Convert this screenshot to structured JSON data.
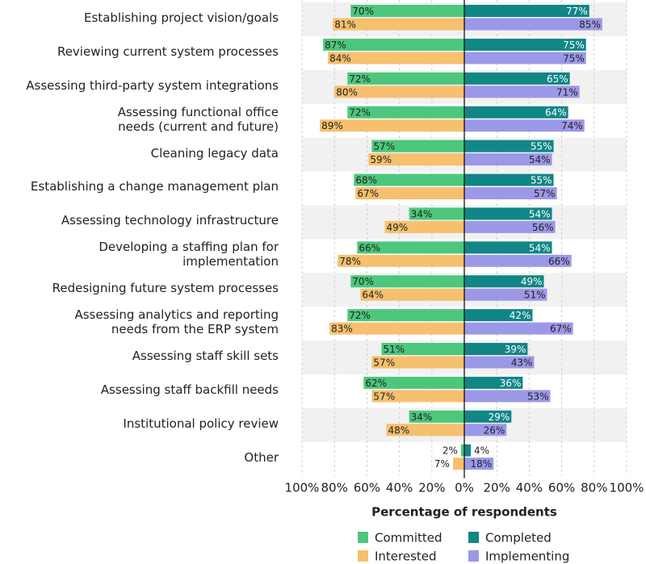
{
  "chart_data": {
    "type": "diverging_bar",
    "x_label": "Percentage of respondents",
    "categories": [
      "Establishing project vision/goals",
      "Reviewing current system processes",
      "Assessing third-party system integrations",
      "Assessing functional office\nneeds (current and future)",
      "Cleaning legacy data",
      "Establishing a change management plan",
      "Assessing technology infrastructure",
      "Developing a staffing plan for implementation",
      "Redesigning future system processes",
      "Assessing analytics and reporting\nneeds from the ERP system",
      "Assessing staff skill sets",
      "Assessing staff backfill needs",
      "Institutional policy review",
      "Other"
    ],
    "series": [
      {
        "name": "Committed",
        "color": "#4cc77c",
        "side": "left",
        "values": [
          70,
          87,
          72,
          72,
          57,
          68,
          34,
          66,
          70,
          72,
          51,
          62,
          34,
          2
        ],
        "value_labels": [
          "70%",
          "87%",
          "72%",
          "72%",
          "57%",
          "68%",
          "34%",
          "66%",
          "70%",
          "72%",
          "51%",
          "62%",
          "34%",
          "2%"
        ]
      },
      {
        "name": "Interested",
        "color": "#f6c06e",
        "side": "left",
        "values": [
          81,
          84,
          80,
          89,
          59,
          67,
          49,
          78,
          64,
          83,
          57,
          57,
          48,
          7
        ],
        "value_labels": [
          "81%",
          "84%",
          "80%",
          "89%",
          "59%",
          "67%",
          "49%",
          "78%",
          "64%",
          "83%",
          "57%",
          "57%",
          "48%",
          "7%"
        ]
      },
      {
        "name": "Completed",
        "color": "#118686",
        "side": "right",
        "values": [
          77,
          75,
          65,
          64,
          55,
          55,
          54,
          54,
          49,
          42,
          39,
          36,
          29,
          4
        ],
        "value_labels": [
          "77%",
          "75%",
          "65%",
          "64%",
          "55%",
          "55%",
          "54%",
          "54%",
          "49%",
          "42%",
          "39%",
          "36%",
          "29%",
          "4%"
        ]
      },
      {
        "name": "Implementing",
        "color": "#9c98e8",
        "side": "right",
        "values": [
          85,
          75,
          71,
          74,
          54,
          57,
          56,
          66,
          51,
          67,
          43,
          53,
          26,
          18
        ],
        "value_labels": [
          "85%",
          "75%",
          "71%",
          "74%",
          "54%",
          "57%",
          "56%",
          "66%",
          "51%",
          "67%",
          "43%",
          "53%",
          "26%",
          "18%"
        ]
      }
    ],
    "xlim": [
      -100,
      100
    ],
    "xticks": [
      {
        "value": -100,
        "label": "100%"
      },
      {
        "value": -80,
        "label": "80%"
      },
      {
        "value": -60,
        "label": "60%"
      },
      {
        "value": -40,
        "label": "40%"
      },
      {
        "value": -20,
        "label": "20%"
      },
      {
        "value": 0,
        "label": "0%"
      },
      {
        "value": 20,
        "label": "20%"
      },
      {
        "value": 40,
        "label": "40%"
      },
      {
        "value": 60,
        "label": "60%"
      },
      {
        "value": 80,
        "label": "80%"
      },
      {
        "value": 100,
        "label": "100%"
      }
    ],
    "grid": true
  }
}
